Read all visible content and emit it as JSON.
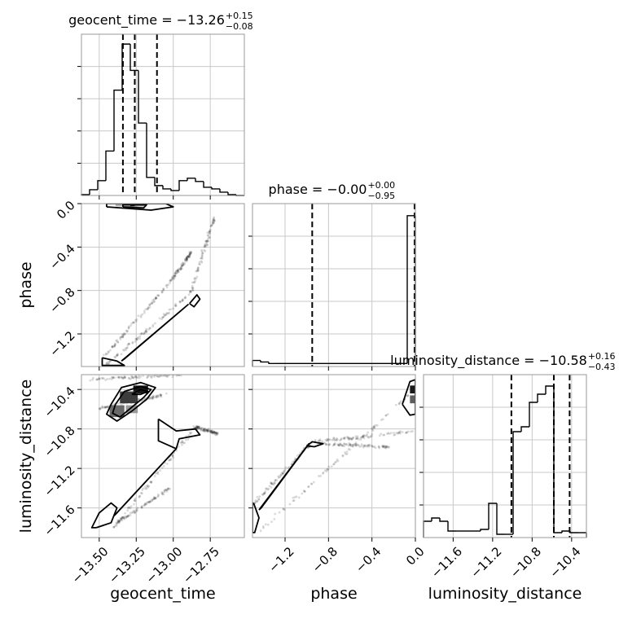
{
  "figure": {
    "type": "corner-plot"
  },
  "chart_data": {
    "type": "corner",
    "parameters": [
      {
        "name": "geocent_time",
        "axis_label": "geocent_time",
        "range": [
          -13.62,
          -12.52
        ],
        "ticks": [
          -13.5,
          -13.25,
          -13.0,
          -12.75
        ],
        "tick_labels": [
          "−13.50",
          "−13.25",
          "−13.00",
          "−12.75"
        ],
        "title": {
          "main": "geocent_time = −13.26",
          "sup": "+0.15",
          "sub": "−0.08"
        },
        "quantiles": [
          -13.34,
          -13.26,
          -13.11
        ],
        "histogram": {
          "edges": [
            -13.62,
            -13.565,
            -13.51,
            -13.455,
            -13.4,
            -13.345,
            -13.29,
            -13.235,
            -13.18,
            -13.125,
            -13.07,
            -13.015,
            -12.96,
            -12.905,
            -12.85,
            -12.795,
            -12.74,
            -12.685,
            -12.63,
            -12.575,
            -12.52
          ],
          "counts": [
            1,
            7,
            18,
            54,
            128,
            184,
            152,
            88,
            22,
            12,
            8,
            6,
            18,
            21,
            17,
            10,
            8,
            4,
            1,
            0
          ],
          "ymax": 196
        }
      },
      {
        "name": "phase",
        "axis_label": "phase",
        "range": [
          -1.5,
          0.0
        ],
        "ticks": [
          -1.2,
          -0.8,
          -0.4,
          0.0
        ],
        "tick_labels": [
          "−1.2",
          "−0.8",
          "−0.4",
          "0.0"
        ],
        "title": {
          "main": "phase = −0.00",
          "sup": "+0.00",
          "sub": "−0.95"
        },
        "quantiles": [
          -0.95,
          -0.005,
          0.0
        ],
        "histogram": {
          "edges": [
            -1.5,
            -1.425,
            -1.35,
            -1.275,
            -1.2,
            -1.125,
            -1.05,
            -0.975,
            -0.9,
            -0.825,
            -0.75,
            -0.675,
            -0.6,
            -0.525,
            -0.45,
            -0.375,
            -0.3,
            -0.225,
            -0.15,
            -0.075,
            0.0
          ],
          "counts": [
            4,
            3,
            2,
            2,
            2,
            2,
            2,
            2,
            2,
            2,
            2,
            2,
            2,
            2,
            2,
            2,
            2,
            2,
            2,
            100
          ],
          "ymax": 108
        }
      },
      {
        "name": "luminosity_distance",
        "axis_label": "luminosity_distance",
        "range": [
          -11.9,
          -10.25
        ],
        "ticks": [
          -11.6,
          -11.2,
          -10.8,
          -10.4
        ],
        "tick_labels": [
          "−11.6",
          "−11.2",
          "−10.8",
          "−10.4"
        ],
        "title": {
          "main": "luminosity_distance = −10.58",
          "sup": "+0.16",
          "sub": "−0.43"
        },
        "quantiles": [
          -11.01,
          -10.58,
          -10.42
        ],
        "histogram": {
          "edges": [
            -11.9,
            -11.8175,
            -11.735,
            -11.6525,
            -11.57,
            -11.4875,
            -11.405,
            -11.3225,
            -11.24,
            -11.1575,
            -11.075,
            -10.9925,
            -10.91,
            -10.8275,
            -10.745,
            -10.6625,
            -10.58,
            -10.4975,
            -10.415,
            -10.3325,
            -10.25
          ],
          "counts": [
            10,
            12,
            10,
            4,
            4,
            4,
            4,
            5,
            21,
            2,
            2,
            65,
            68,
            83,
            88,
            93,
            3,
            4,
            3,
            3
          ],
          "ymax": 100
        }
      }
    ],
    "panels": [
      {
        "x": "geocent_time",
        "y": "phase",
        "dense_blobs": [
          {
            "center": [
              -13.27,
              -0.01
            ],
            "radius": [
              0.035,
              0.015
            ],
            "shade": 1.0
          },
          {
            "center": [
              -13.22,
              -0.01
            ],
            "radius": [
              0.04,
              0.015
            ],
            "shade": 0.5
          },
          {
            "center": [
              -13.34,
              -0.01
            ],
            "radius": [
              0.05,
              0.015
            ],
            "shade": 0.35
          }
        ],
        "scatter_tracks": [
          {
            "from": [
              -13.45,
              -1.48
            ],
            "to": [
              -12.88,
              -0.82
            ]
          },
          {
            "from": [
              -12.88,
              -0.82
            ],
            "to": [
              -12.72,
              -0.12
            ]
          },
          {
            "from": [
              -13.46,
              -1.4
            ],
            "to": [
              -13.02,
              -0.72
            ]
          },
          {
            "from": [
              -13.02,
              -0.72
            ],
            "to": [
              -12.88,
              -0.45
            ]
          }
        ],
        "contours": [
          [
            [
              -13.45,
              -0.03
            ],
            [
              -13.15,
              -0.06
            ],
            [
              -13.0,
              -0.03
            ],
            [
              -13.05,
              0.0
            ],
            [
              -13.45,
              0.0
            ],
            [
              -13.45,
              -0.03
            ]
          ],
          [
            [
              -13.34,
              -0.03
            ],
            [
              -13.2,
              -0.04
            ],
            [
              -13.18,
              -0.01
            ],
            [
              -13.34,
              -0.01
            ],
            [
              -13.34,
              -0.03
            ]
          ],
          [
            [
              -12.89,
              -0.92
            ],
            [
              -12.84,
              -0.84
            ],
            [
              -12.82,
              -0.88
            ],
            [
              -12.86,
              -0.95
            ],
            [
              -12.89,
              -0.92
            ]
          ],
          [
            [
              -13.48,
              -1.42
            ],
            [
              -13.38,
              -1.45
            ],
            [
              -13.33,
              -1.49
            ],
            [
              -13.48,
              -1.49
            ],
            [
              -13.48,
              -1.42
            ]
          ],
          [
            [
              -13.35,
              -1.45
            ],
            [
              -12.9,
              -0.93
            ],
            [
              -13.33,
              -1.43
            ],
            [
              -13.35,
              -1.45
            ]
          ]
        ]
      },
      {
        "x": "geocent_time",
        "y": "luminosity_distance",
        "dense_blobs": [
          {
            "center": [
              -13.22,
              -10.4
            ],
            "radius": [
              0.05,
              0.04
            ],
            "shade": 1.0
          },
          {
            "center": [
              -13.3,
              -10.48
            ],
            "radius": [
              0.06,
              0.06
            ],
            "shade": 0.85
          },
          {
            "center": [
              -13.38,
              -10.62
            ],
            "radius": [
              0.05,
              0.06
            ],
            "shade": 0.65
          },
          {
            "center": [
              -13.28,
              -10.6
            ],
            "radius": [
              0.04,
              0.04
            ],
            "shade": 0.45
          }
        ],
        "scatter_tracks": [
          {
            "from": [
              -13.58,
              -10.3
            ],
            "to": [
              -12.95,
              -10.25
            ]
          },
          {
            "from": [
              -13.52,
              -10.6
            ],
            "to": [
              -13.05,
              -10.45
            ]
          },
          {
            "from": [
              -13.4,
              -11.8
            ],
            "to": [
              -12.85,
              -10.78
            ]
          },
          {
            "from": [
              -12.85,
              -10.78
            ],
            "to": [
              -12.7,
              -10.85
            ]
          },
          {
            "from": [
              -13.38,
              -11.75
            ],
            "to": [
              -13.02,
              -11.4
            ]
          }
        ],
        "contours": [
          [
            [
              -13.42,
              -10.55
            ],
            [
              -13.35,
              -10.38
            ],
            [
              -13.22,
              -10.33
            ],
            [
              -13.12,
              -10.38
            ],
            [
              -13.18,
              -10.5
            ],
            [
              -13.28,
              -10.62
            ],
            [
              -13.38,
              -10.72
            ],
            [
              -13.45,
              -10.65
            ],
            [
              -13.42,
              -10.55
            ]
          ],
          [
            [
              -13.39,
              -10.55
            ],
            [
              -13.33,
              -10.42
            ],
            [
              -13.22,
              -10.37
            ],
            [
              -13.15,
              -10.4
            ],
            [
              -13.2,
              -10.48
            ],
            [
              -13.28,
              -10.58
            ],
            [
              -13.36,
              -10.68
            ],
            [
              -13.41,
              -10.64
            ],
            [
              -13.39,
              -10.55
            ]
          ],
          [
            [
              -13.28,
              -10.45
            ],
            [
              -13.22,
              -10.4
            ],
            [
              -13.17,
              -10.42
            ],
            [
              -13.22,
              -10.45
            ],
            [
              -13.28,
              -10.45
            ]
          ],
          [
            [
              -13.1,
              -10.7
            ],
            [
              -12.98,
              -10.82
            ],
            [
              -12.85,
              -10.8
            ],
            [
              -12.82,
              -10.86
            ],
            [
              -12.96,
              -10.9
            ],
            [
              -12.98,
              -11.0
            ],
            [
              -13.1,
              -10.92
            ],
            [
              -13.1,
              -10.7
            ]
          ],
          [
            [
              -13.52,
              -11.8
            ],
            [
              -13.42,
              -11.75
            ],
            [
              -13.38,
              -11.6
            ],
            [
              -13.42,
              -11.55
            ],
            [
              -13.5,
              -11.65
            ],
            [
              -13.55,
              -11.8
            ],
            [
              -13.52,
              -11.8
            ]
          ],
          [
            [
              -13.4,
              -11.68
            ],
            [
              -12.98,
              -11.0
            ],
            [
              -13.38,
              -11.65
            ],
            [
              -13.4,
              -11.68
            ]
          ]
        ]
      },
      {
        "x": "phase",
        "y": "luminosity_distance",
        "dense_blobs": [
          {
            "center": [
              -0.02,
              -10.4
            ],
            "radius": [
              0.03,
              0.04
            ],
            "shade": 1.0
          },
          {
            "center": [
              -0.02,
              -10.5
            ],
            "radius": [
              0.03,
              0.04
            ],
            "shade": 0.7
          }
        ],
        "scatter_tracks": [
          {
            "from": [
              -1.48,
              -11.55
            ],
            "to": [
              -0.95,
              -10.93
            ]
          },
          {
            "from": [
              -0.95,
              -10.93
            ],
            "to": [
              -0.02,
              -10.83
            ]
          },
          {
            "from": [
              -1.45,
              -11.85
            ],
            "to": [
              -0.05,
              -10.45
            ]
          },
          {
            "from": [
              -0.9,
              -10.95
            ],
            "to": [
              -0.25,
              -10.98
            ]
          }
        ],
        "contours": [
          [
            [
              -0.12,
              -10.55
            ],
            [
              -0.05,
              -10.32
            ],
            [
              0.0,
              -10.3
            ],
            [
              0.0,
              -10.65
            ],
            [
              -0.05,
              -10.66
            ],
            [
              -0.12,
              -10.55
            ]
          ],
          [
            [
              -1.0,
              -10.97
            ],
            [
              -0.95,
              -10.93
            ],
            [
              -0.85,
              -10.95
            ],
            [
              -0.93,
              -10.98
            ],
            [
              -1.0,
              -10.97
            ]
          ],
          [
            [
              -1.49,
              -11.55
            ],
            [
              -1.44,
              -11.7
            ],
            [
              -1.48,
              -11.85
            ],
            [
              -1.5,
              -11.85
            ],
            [
              -1.5,
              -11.55
            ],
            [
              -1.49,
              -11.55
            ]
          ],
          [
            [
              -1.44,
              -11.62
            ],
            [
              -0.98,
              -10.95
            ],
            [
              -1.42,
              -11.6
            ],
            [
              -1.44,
              -11.62
            ]
          ]
        ]
      }
    ]
  }
}
